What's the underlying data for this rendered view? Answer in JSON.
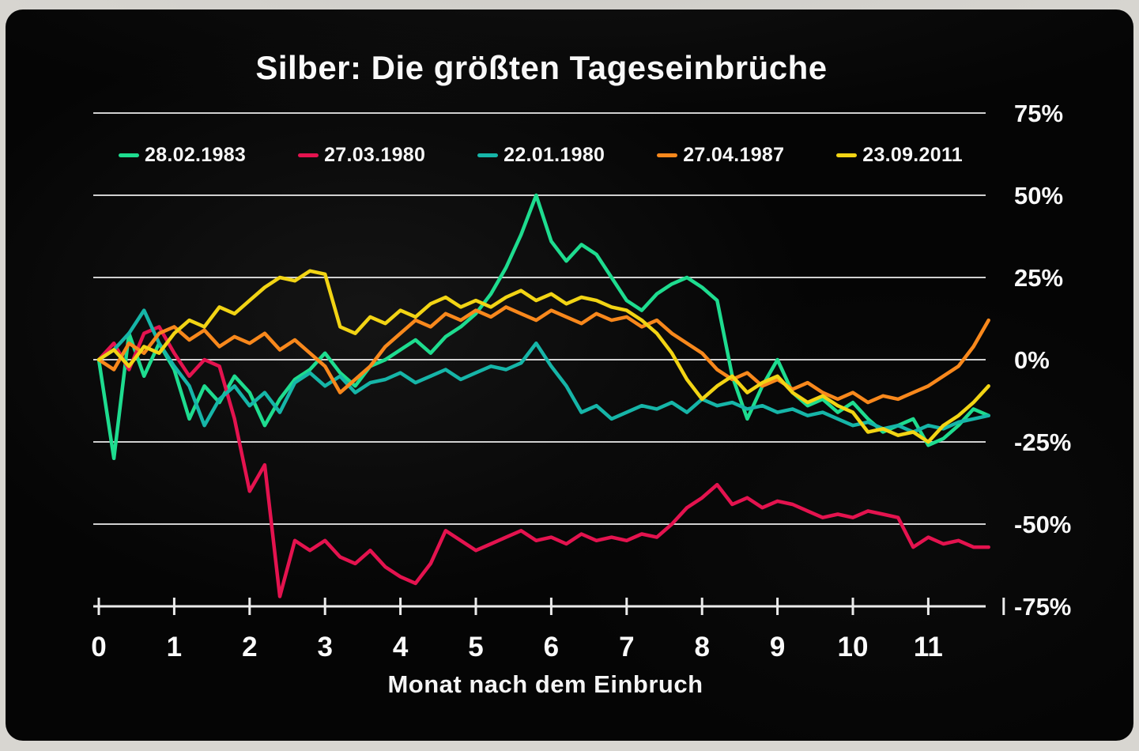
{
  "chart_data": {
    "type": "line",
    "title": "Silber: Die größten Tageseinbrüche",
    "xlabel": "Monat nach dem Einbruch",
    "ylabel": "",
    "xlim": [
      0,
      12
    ],
    "ylim": [
      -75,
      75
    ],
    "grid": true,
    "legend_position": "top",
    "x_ticks": [
      0,
      1,
      2,
      3,
      4,
      5,
      6,
      7,
      8,
      9,
      10,
      11
    ],
    "y_ticks": [
      75,
      50,
      25,
      0,
      -25,
      -50,
      -75
    ],
    "y_tick_labels": [
      "75%",
      "50%",
      "25%",
      "0%",
      "-25%",
      "-50%",
      "-75%"
    ],
    "background_color": "#050505",
    "gridline_color": "#ececec",
    "series": [
      {
        "name": "28.02.1983",
        "color": "#1edc8f",
        "x_start": 0,
        "x_step": 0.2,
        "y": [
          0,
          -30,
          8,
          -5,
          5,
          -3,
          -18,
          -8,
          -13,
          -5,
          -10,
          -20,
          -12,
          -6,
          -3,
          2,
          -4,
          -8,
          -2,
          0,
          3,
          6,
          2,
          7,
          10,
          14,
          20,
          28,
          38,
          50,
          36,
          30,
          35,
          32,
          25,
          18,
          15,
          20,
          23,
          25,
          22,
          18,
          -5,
          -18,
          -8,
          0,
          -10,
          -14,
          -12,
          -16,
          -13,
          -18,
          -22,
          -20,
          -18,
          -26,
          -24,
          -20,
          -15,
          -17
        ]
      },
      {
        "name": "27.03.1980",
        "color": "#e4134f",
        "x_start": 0,
        "x_step": 0.2,
        "y": [
          0,
          5,
          -3,
          8,
          10,
          2,
          -5,
          0,
          -2,
          -18,
          -40,
          -32,
          -72,
          -55,
          -58,
          -55,
          -60,
          -62,
          -58,
          -63,
          -66,
          -68,
          -62,
          -52,
          -55,
          -58,
          -56,
          -54,
          -52,
          -55,
          -54,
          -56,
          -53,
          -55,
          -54,
          -55,
          -53,
          -54,
          -50,
          -45,
          -42,
          -38,
          -44,
          -42,
          -45,
          -43,
          -44,
          -46,
          -48,
          -47,
          -48,
          -46,
          -47,
          -48,
          -57,
          -54,
          -56,
          -55,
          -57,
          -57
        ]
      },
      {
        "name": "22.01.1980",
        "color": "#16b5a8",
        "x_start": 0,
        "x_step": 0.2,
        "y": [
          0,
          3,
          8,
          15,
          5,
          -2,
          -8,
          -20,
          -12,
          -8,
          -14,
          -10,
          -16,
          -7,
          -4,
          -8,
          -5,
          -10,
          -7,
          -6,
          -4,
          -7,
          -5,
          -3,
          -6,
          -4,
          -2,
          -3,
          -1,
          5,
          -2,
          -8,
          -16,
          -14,
          -18,
          -16,
          -14,
          -15,
          -13,
          -16,
          -12,
          -14,
          -13,
          -15,
          -14,
          -16,
          -15,
          -17,
          -16,
          -18,
          -20,
          -19,
          -21,
          -20,
          -22,
          -20,
          -21,
          -19,
          -18,
          -17
        ]
      },
      {
        "name": "27.04.1987",
        "color": "#f8881c",
        "x_start": 0,
        "x_step": 0.2,
        "y": [
          0,
          -3,
          5,
          2,
          8,
          10,
          6,
          9,
          4,
          7,
          5,
          8,
          3,
          6,
          2,
          -2,
          -10,
          -6,
          -2,
          4,
          8,
          12,
          10,
          14,
          12,
          15,
          13,
          16,
          14,
          12,
          15,
          13,
          11,
          14,
          12,
          13,
          10,
          12,
          8,
          5,
          2,
          -3,
          -6,
          -4,
          -8,
          -6,
          -9,
          -7,
          -10,
          -12,
          -10,
          -13,
          -11,
          -12,
          -10,
          -8,
          -5,
          -2,
          4,
          12
        ]
      },
      {
        "name": "23.09.2011",
        "color": "#f2d414",
        "x_start": 0,
        "x_step": 0.2,
        "y": [
          0,
          3,
          -2,
          4,
          2,
          8,
          12,
          10,
          16,
          14,
          18,
          22,
          25,
          24,
          27,
          26,
          10,
          8,
          13,
          11,
          15,
          13,
          17,
          19,
          16,
          18,
          16,
          19,
          21,
          18,
          20,
          17,
          19,
          18,
          16,
          15,
          12,
          8,
          2,
          -6,
          -12,
          -8,
          -5,
          -10,
          -7,
          -5,
          -10,
          -13,
          -11,
          -14,
          -16,
          -22,
          -21,
          -23,
          -22,
          -25,
          -20,
          -17,
          -13,
          -8
        ]
      }
    ]
  }
}
